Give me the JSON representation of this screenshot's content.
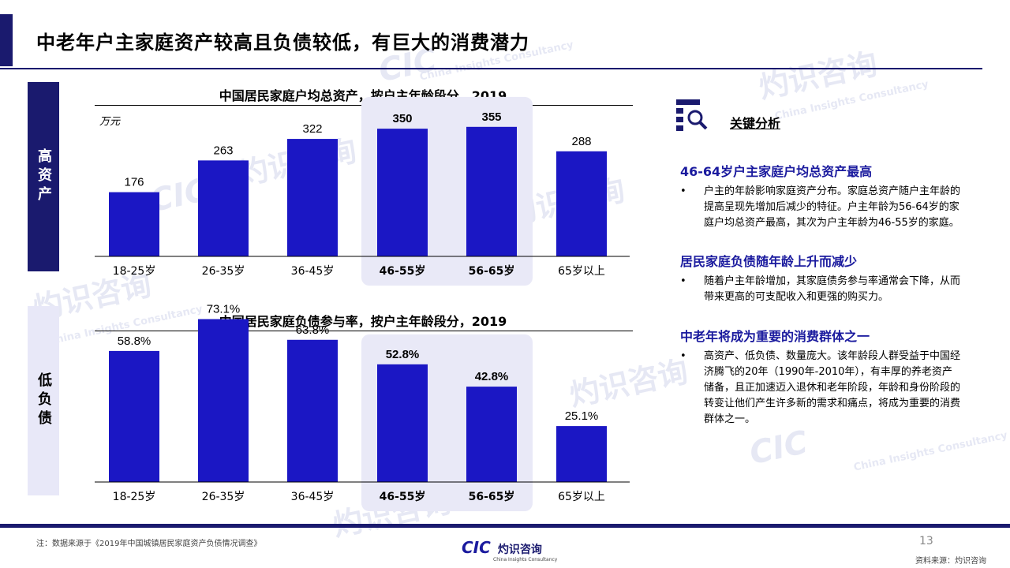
{
  "page": {
    "title": "中老年户主家庭资产较高且负债较低，有巨大的消费潜力",
    "footnote": "注：数据来源于《2019年中国城镇居民家庭资产负债情况调查》",
    "page_number": "13",
    "source": "资料来源：灼识咨询",
    "logo_text": "灼识咨询",
    "logo_sub": "China Insights Consultancy",
    "logo_mark": "CIC"
  },
  "side_labels": {
    "high": "高资产",
    "low": "低负债"
  },
  "watermark": {
    "brand": "灼识咨询",
    "en": "China Insights Consultancy",
    "mark": "CIC"
  },
  "chart_data": [
    {
      "type": "bar",
      "title": "中国居民家庭户均总资产，按户主年龄段分，2019",
      "unit": "万元",
      "categories": [
        "18-25岁",
        "26-35岁",
        "36-45岁",
        "46-55岁",
        "56-65岁",
        "65岁以上"
      ],
      "values": [
        176,
        263,
        322,
        350,
        355,
        288
      ],
      "labels": [
        "176",
        "263",
        "322",
        "350",
        "355",
        "288"
      ],
      "highlight": [
        "46-55岁",
        "56-65岁"
      ],
      "ylim": [
        0,
        400
      ],
      "color": "#1b17c4"
    },
    {
      "type": "bar",
      "title": "中国居民家庭负债参与率，按户主年龄段分，2019",
      "categories": [
        "18-25岁",
        "26-35岁",
        "36-45岁",
        "46-55岁",
        "56-65岁",
        "65岁以上"
      ],
      "values": [
        58.8,
        73.1,
        63.8,
        52.8,
        42.8,
        25.1
      ],
      "labels": [
        "58.8%",
        "73.1%",
        "63.8%",
        "52.8%",
        "42.8%",
        "25.1%"
      ],
      "highlight": [
        "46-55岁",
        "56-65岁"
      ],
      "ylim": [
        0,
        80
      ],
      "color": "#1b17c4"
    }
  ],
  "analysis": {
    "heading": "关键分析",
    "sections": [
      {
        "title": "46-64岁户主家庭户均总资产最高",
        "text": "户主的年龄影响家庭资产分布。家庭总资产随户主年龄的提高呈现先增加后减少的特征。户主年龄为56-64岁的家庭户均总资产最高，其次为户主年龄为46-55岁的家庭。"
      },
      {
        "title": "居民家庭负债随年龄上升而减少",
        "text": "随着户主年龄增加，其家庭债务参与率通常会下降，从而带来更高的可支配收入和更强的购买力。"
      },
      {
        "title": "中老年将成为重要的消费群体之一",
        "text": "高资产、低负债、数量庞大。该年龄段人群受益于中国经济腾飞的20年（1990年-2010年），有丰厚的养老资产储备，且正加速迈入退休和老年阶段，年龄和身份阶段的转变让他们产生许多新的需求和痛点，将成为重要的消费群体之一。"
      }
    ]
  }
}
